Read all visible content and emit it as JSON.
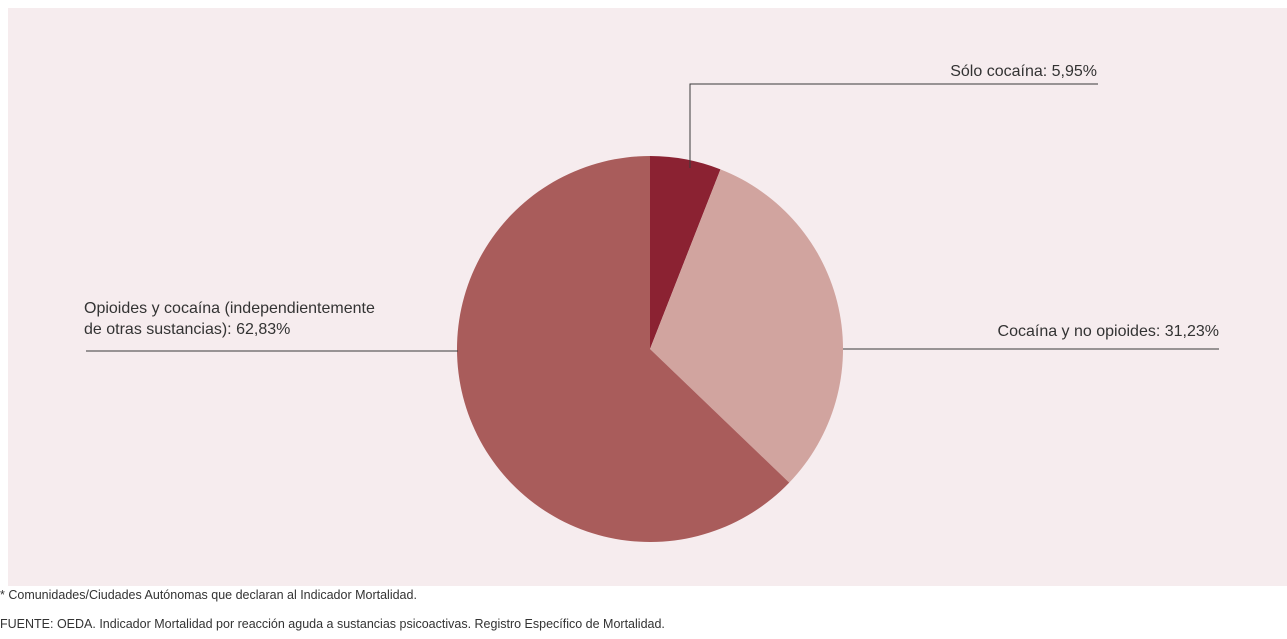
{
  "chart_data": {
    "type": "pie",
    "slices": [
      {
        "label": "Sólo cocaína",
        "value": 5.95,
        "color": "#8b2232",
        "display": "Sólo cocaína: 5,95%"
      },
      {
        "label": "Cocaína y no opioides",
        "value": 31.23,
        "color": "#d1a49f",
        "display": "Cocaína y no opioides: 31,23%"
      },
      {
        "label": "Opioides y cocaína (independientemente de otras sustancias)",
        "value": 62.83,
        "color": "#a95c5b",
        "display_lines": [
          "Opioides y cocaína (independientemente",
          "de otras sustancias): 62,83%"
        ]
      }
    ],
    "start_angle_deg": 0,
    "direction": "clockwise",
    "background": "#f6ecee"
  },
  "notes": {
    "footnote": "* Comunidades/Ciudades Autónomas que declaran al Indicador Mortalidad.",
    "source": "FUENTE: OEDA. Indicador Mortalidad por reacción aguda a sustancias psicoactivas. Registro Específico de Mortalidad."
  }
}
